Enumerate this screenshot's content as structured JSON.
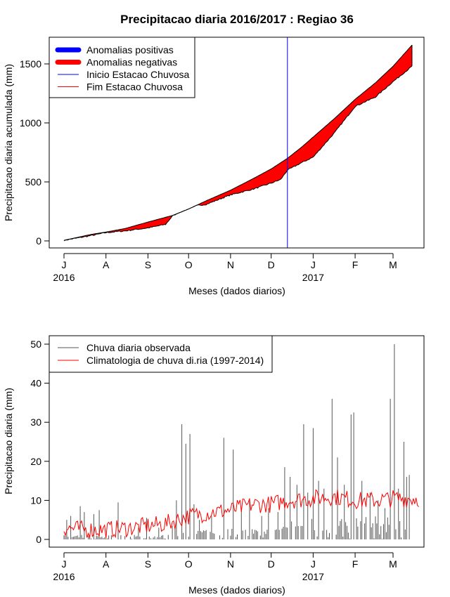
{
  "page_title": "Precipitacao diaria 2016/2017 : Regiao 36",
  "chart_data": [
    {
      "type": "area",
      "title": "Precipitacao diaria 2016/2017 : Regiao 36",
      "xlabel": "Meses (dados diarios)",
      "ylabel": "Precipitacao diaria acumulada (mm)",
      "ylim": [
        0,
        1700
      ],
      "yticks": [
        0,
        500,
        1000,
        1500
      ],
      "month_ticks": [
        {
          "label": "J",
          "day": 0
        },
        {
          "label": "A",
          "day": 31
        },
        {
          "label": "S",
          "day": 62
        },
        {
          "label": "O",
          "day": 92
        },
        {
          "label": "N",
          "day": 123
        },
        {
          "label": "D",
          "day": 153
        },
        {
          "label": "J",
          "day": 184
        },
        {
          "label": "F",
          "day": 215
        },
        {
          "label": "M",
          "day": 243
        }
      ],
      "year_labels": [
        {
          "label": "2016",
          "day": 0
        },
        {
          "label": "2017",
          "day": 184
        }
      ],
      "season_start_day": 165,
      "climatology_accumulated": {
        "day": [
          0,
          10,
          20,
          31,
          45,
          62,
          80,
          92,
          105,
          123,
          140,
          153,
          165,
          175,
          184,
          200,
          215,
          230,
          243,
          257
        ],
        "value": [
          5,
          30,
          55,
          75,
          105,
          160,
          215,
          270,
          340,
          430,
          530,
          610,
          700,
          790,
          880,
          1040,
          1200,
          1340,
          1480,
          1660
        ]
      },
      "observed_accumulated": {
        "day": [
          0,
          10,
          20,
          31,
          45,
          62,
          75,
          80,
          92,
          105,
          123,
          140,
          153,
          160,
          165,
          175,
          184,
          200,
          215,
          230,
          243,
          257
        ],
        "value": [
          5,
          25,
          45,
          70,
          85,
          110,
          140,
          210,
          290,
          310,
          390,
          440,
          490,
          520,
          600,
          660,
          710,
          920,
          1140,
          1220,
          1350,
          1480
        ]
      },
      "legend": {
        "position": "top-left",
        "entries": [
          {
            "label": "Anomalias positivas",
            "color": "#0000ff",
            "style": "thick"
          },
          {
            "label": "Anomalias negativas",
            "color": "#ff0000",
            "style": "thick"
          },
          {
            "label": "Inicio Estacao Chuvosa",
            "color": "#0000ff",
            "style": "thin"
          },
          {
            "label": "Fim Estacao Chuvosa",
            "color": "#ff0000",
            "style": "thin"
          }
        ]
      }
    },
    {
      "type": "bar",
      "xlabel": "Meses (dados diarios)",
      "ylabel": "Precipitacao diaria (mm)",
      "ylim": [
        0,
        50
      ],
      "yticks": [
        0,
        10,
        20,
        30,
        40,
        50
      ],
      "month_ticks": [
        {
          "label": "J",
          "day": 0
        },
        {
          "label": "A",
          "day": 31
        },
        {
          "label": "S",
          "day": 62
        },
        {
          "label": "O",
          "day": 92
        },
        {
          "label": "N",
          "day": 123
        },
        {
          "label": "D",
          "day": 153
        },
        {
          "label": "J",
          "day": 184
        },
        {
          "label": "F",
          "day": 215
        },
        {
          "label": "M",
          "day": 243
        }
      ],
      "year_labels": [
        {
          "label": "2016",
          "day": 0
        },
        {
          "label": "2017",
          "day": 184
        }
      ],
      "observed_daily_peaks": [
        {
          "day": 2,
          "value": 5
        },
        {
          "day": 5,
          "value": 6
        },
        {
          "day": 12,
          "value": 8.5
        },
        {
          "day": 15,
          "value": 7
        },
        {
          "day": 22,
          "value": 6.5
        },
        {
          "day": 26,
          "value": 7.5
        },
        {
          "day": 40,
          "value": 9.5
        },
        {
          "day": 55,
          "value": 3
        },
        {
          "day": 61,
          "value": 5.5
        },
        {
          "day": 70,
          "value": 3
        },
        {
          "day": 80,
          "value": 3.5
        },
        {
          "day": 83,
          "value": 10
        },
        {
          "day": 87,
          "value": 29.5
        },
        {
          "day": 90,
          "value": 24.5
        },
        {
          "day": 93,
          "value": 27
        },
        {
          "day": 96,
          "value": 9
        },
        {
          "day": 100,
          "value": 5
        },
        {
          "day": 109,
          "value": 6
        },
        {
          "day": 118,
          "value": 26
        },
        {
          "day": 125,
          "value": 23
        },
        {
          "day": 131,
          "value": 8
        },
        {
          "day": 137,
          "value": 10
        },
        {
          "day": 146,
          "value": 6
        },
        {
          "day": 151,
          "value": 8
        },
        {
          "day": 158,
          "value": 7
        },
        {
          "day": 163,
          "value": 18.5
        },
        {
          "day": 167,
          "value": 16
        },
        {
          "day": 172,
          "value": 14
        },
        {
          "day": 177,
          "value": 29.5
        },
        {
          "day": 180,
          "value": 12
        },
        {
          "day": 184,
          "value": 28.5
        },
        {
          "day": 188,
          "value": 15
        },
        {
          "day": 192,
          "value": 13
        },
        {
          "day": 198,
          "value": 36
        },
        {
          "day": 202,
          "value": 21
        },
        {
          "day": 207,
          "value": 14
        },
        {
          "day": 212,
          "value": 32
        },
        {
          "day": 214,
          "value": 32.5
        },
        {
          "day": 220,
          "value": 15
        },
        {
          "day": 226,
          "value": 12
        },
        {
          "day": 232,
          "value": 10
        },
        {
          "day": 237,
          "value": 8
        },
        {
          "day": 241,
          "value": 36
        },
        {
          "day": 244,
          "value": 50
        },
        {
          "day": 247,
          "value": 13
        },
        {
          "day": 251,
          "value": 25
        },
        {
          "day": 253,
          "value": 16
        },
        {
          "day": 255,
          "value": 16.5
        }
      ],
      "climatology_daily": {
        "day": [
          0,
          15,
          31,
          50,
          62,
          75,
          92,
          110,
          123,
          140,
          153,
          165,
          184,
          200,
          215,
          230,
          243,
          262
        ],
        "value": [
          3,
          2.5,
          2.5,
          3,
          3.5,
          4,
          6,
          7,
          7.5,
          9,
          9,
          10,
          10.5,
          11,
          10,
          10,
          10.5,
          10.5
        ]
      },
      "legend": {
        "position": "top-left",
        "entries": [
          {
            "label": "Chuva diaria observada",
            "color": "#555555",
            "style": "thin"
          },
          {
            "label": "Climatologia de chuva di.ria (1997-2014)",
            "color": "#ff0000",
            "style": "thin"
          }
        ]
      }
    }
  ]
}
